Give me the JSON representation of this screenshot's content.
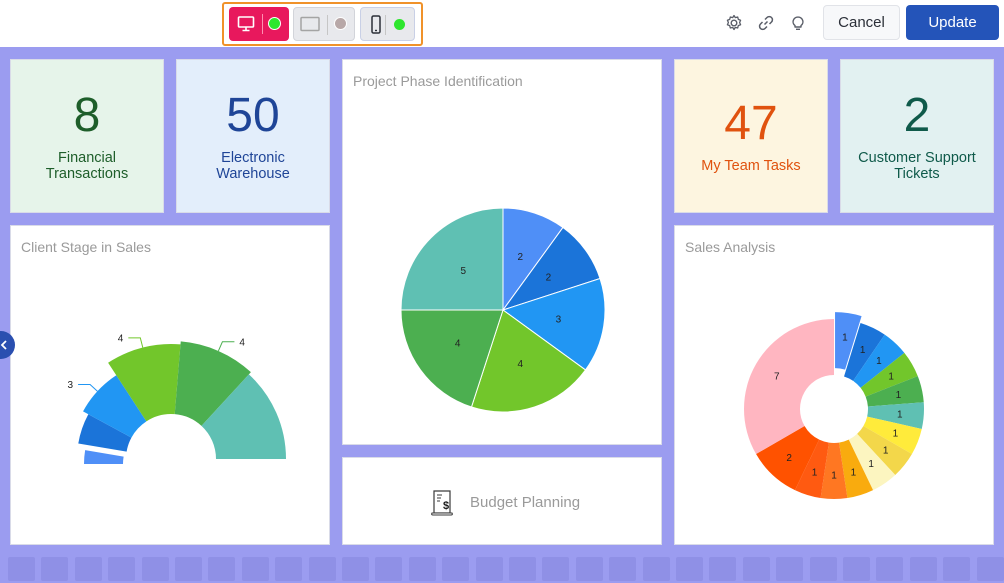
{
  "toolbar": {
    "devices": [
      {
        "name": "desktop",
        "active": true,
        "status_color": "#2ee62e"
      },
      {
        "name": "tablet",
        "active": false,
        "status_color": "#b8a8a8"
      },
      {
        "name": "mobile",
        "active": false,
        "status_color": "#2ee62e"
      }
    ],
    "icons": [
      "gear-icon",
      "link-icon",
      "lightbulb-icon"
    ],
    "cancel_label": "Cancel",
    "update_label": "Update"
  },
  "kpis": [
    {
      "value": "8",
      "label_line1": "Financial",
      "label_line2": "Transactions",
      "bg": "#e6f4ea",
      "color": "#1e5e2a"
    },
    {
      "value": "50",
      "label_line1": "Electronic",
      "label_line2": "Warehouse",
      "bg": "#e3eefb",
      "color": "#1f4597"
    },
    {
      "value": "47",
      "label_line1": "My Team Tasks",
      "label_line2": "",
      "bg": "#fdf5e0",
      "color": "#e0520f"
    },
    {
      "value": "2",
      "label_line1": "Customer Support",
      "label_line2": "Tickets",
      "bg": "#e2f1f1",
      "color": "#0f5a4a"
    }
  ],
  "cards": {
    "project_phase_title": "Project Phase Identification",
    "client_stage_title": "Client Stage in Sales",
    "sales_analysis_title": "Sales Analysis",
    "budget_planning_label": "Budget Planning"
  },
  "chart_data": [
    {
      "type": "pie",
      "title": "Project Phase Identification",
      "values": [
        2,
        2,
        3,
        4,
        4,
        5
      ],
      "colors": [
        "#4f8ff7",
        "#1b74d9",
        "#2196f3",
        "#72c62b",
        "#4caf50",
        "#5fc0b3"
      ]
    },
    {
      "type": "pie",
      "title": "Client Stage in Sales",
      "values": [
        1,
        2,
        3,
        4,
        4,
        5
      ],
      "labels": [
        "",
        "",
        "3",
        "4",
        "4",
        ""
      ],
      "colors": [
        "#4f8ff7",
        "#1b74d9",
        "#2196f3",
        "#72c62b",
        "#4caf50",
        "#5fc0b3"
      ]
    },
    {
      "type": "pie",
      "title": "Sales Analysis",
      "values": [
        1,
        1,
        1,
        1,
        1,
        1,
        1,
        1,
        1,
        1,
        1,
        1,
        2,
        7
      ],
      "colors": [
        "#4f8ff7",
        "#1b74d9",
        "#2196f3",
        "#72c62b",
        "#4caf50",
        "#5fc0b3",
        "#ffeb3b",
        "#f3d74a",
        "#fcf5c0",
        "#f9ab0e",
        "#ff7722",
        "#ff5a11",
        "#ff5200",
        "#ffb6c1"
      ]
    }
  ]
}
